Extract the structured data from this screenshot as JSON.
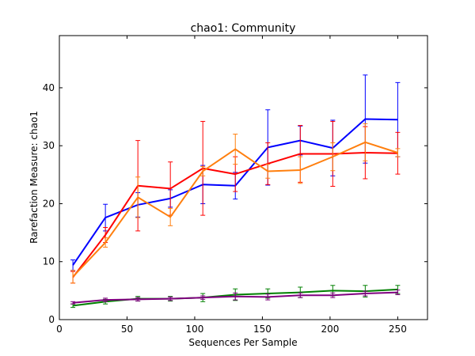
{
  "chart_data": {
    "type": "line",
    "title": "chao1: Community",
    "xlabel": "Sequences Per Sample",
    "ylabel": "Rarefaction Measure: chao1",
    "xlim": [
      0,
      272
    ],
    "ylim": [
      0,
      49
    ],
    "xticks": [
      0,
      50,
      100,
      150,
      200,
      250
    ],
    "yticks": [
      0,
      10,
      20,
      30,
      40
    ],
    "grid": false,
    "legend": "none",
    "x": [
      10,
      34,
      58,
      82,
      106,
      130,
      154,
      178,
      202,
      226,
      250
    ],
    "series": [
      {
        "color": "#0000ff",
        "values": [
          9.4,
          17.6,
          19.8,
          20.9,
          23.3,
          23.1,
          29.7,
          30.9,
          29.6,
          34.6,
          34.5
        ],
        "err": [
          0.9,
          2.3,
          2.1,
          1.5,
          3.3,
          2.3,
          6.5,
          2.5,
          4.8,
          7.6,
          6.4
        ]
      },
      {
        "color": "#ff0000",
        "values": [
          7.3,
          14.6,
          23.1,
          22.6,
          26.1,
          25.1,
          26.9,
          28.6,
          28.6,
          28.8,
          28.7
        ],
        "err": [
          1.0,
          1.3,
          7.8,
          4.6,
          8.1,
          3.0,
          3.6,
          4.9,
          5.6,
          4.5,
          3.6
        ]
      },
      {
        "color": "#ff7f0e",
        "values": [
          7.4,
          13.3,
          21.1,
          17.7,
          25.6,
          29.4,
          25.6,
          25.8,
          28.1,
          30.6,
          28.8
        ],
        "err": [
          1.1,
          0.8,
          3.5,
          1.5,
          0.8,
          2.6,
          1.2,
          2.3,
          2.4,
          3.2,
          0.7
        ]
      },
      {
        "color": "#008000",
        "values": [
          2.4,
          3.1,
          3.6,
          3.6,
          3.8,
          4.3,
          4.5,
          4.7,
          5.0,
          4.9,
          5.2
        ],
        "err": [
          0.3,
          0.4,
          0.4,
          0.4,
          0.7,
          1.0,
          0.8,
          0.9,
          0.9,
          1.0,
          0.7
        ]
      },
      {
        "color": "#800080",
        "values": [
          2.9,
          3.4,
          3.5,
          3.6,
          3.8,
          4.0,
          3.9,
          4.2,
          4.2,
          4.5,
          4.7
        ],
        "err": [
          0.2,
          0.3,
          0.3,
          0.3,
          0.3,
          0.6,
          0.5,
          0.4,
          0.4,
          0.4,
          0.4
        ]
      }
    ]
  }
}
